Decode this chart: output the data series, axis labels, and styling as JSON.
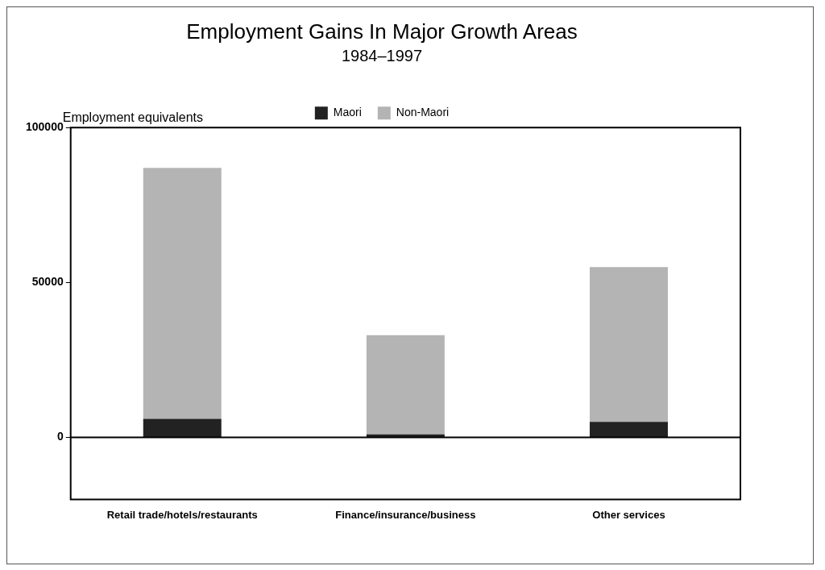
{
  "chart_data": {
    "type": "bar",
    "title": "Employment Gains In Major Growth Areas",
    "subtitle": "1984–1997",
    "ylabel": "Employment equivalents",
    "categories": [
      "Retail trade/hotels/restaurants",
      "Finance/insurance/business",
      "Other services"
    ],
    "series": [
      {
        "name": "Maori",
        "color": "#222222",
        "values": [
          6000,
          1000,
          5000
        ]
      },
      {
        "name": "Non-Maori",
        "color": "#b4b4b4",
        "values": [
          81000,
          32000,
          50000
        ]
      }
    ],
    "stacked": true,
    "ylim": [
      -20000,
      100000
    ],
    "yticks": [
      0,
      50000,
      100000
    ],
    "grid": false,
    "legend": "top",
    "ref_lines": [
      {
        "axis": "y",
        "value": 0,
        "color": "#000000"
      }
    ]
  }
}
